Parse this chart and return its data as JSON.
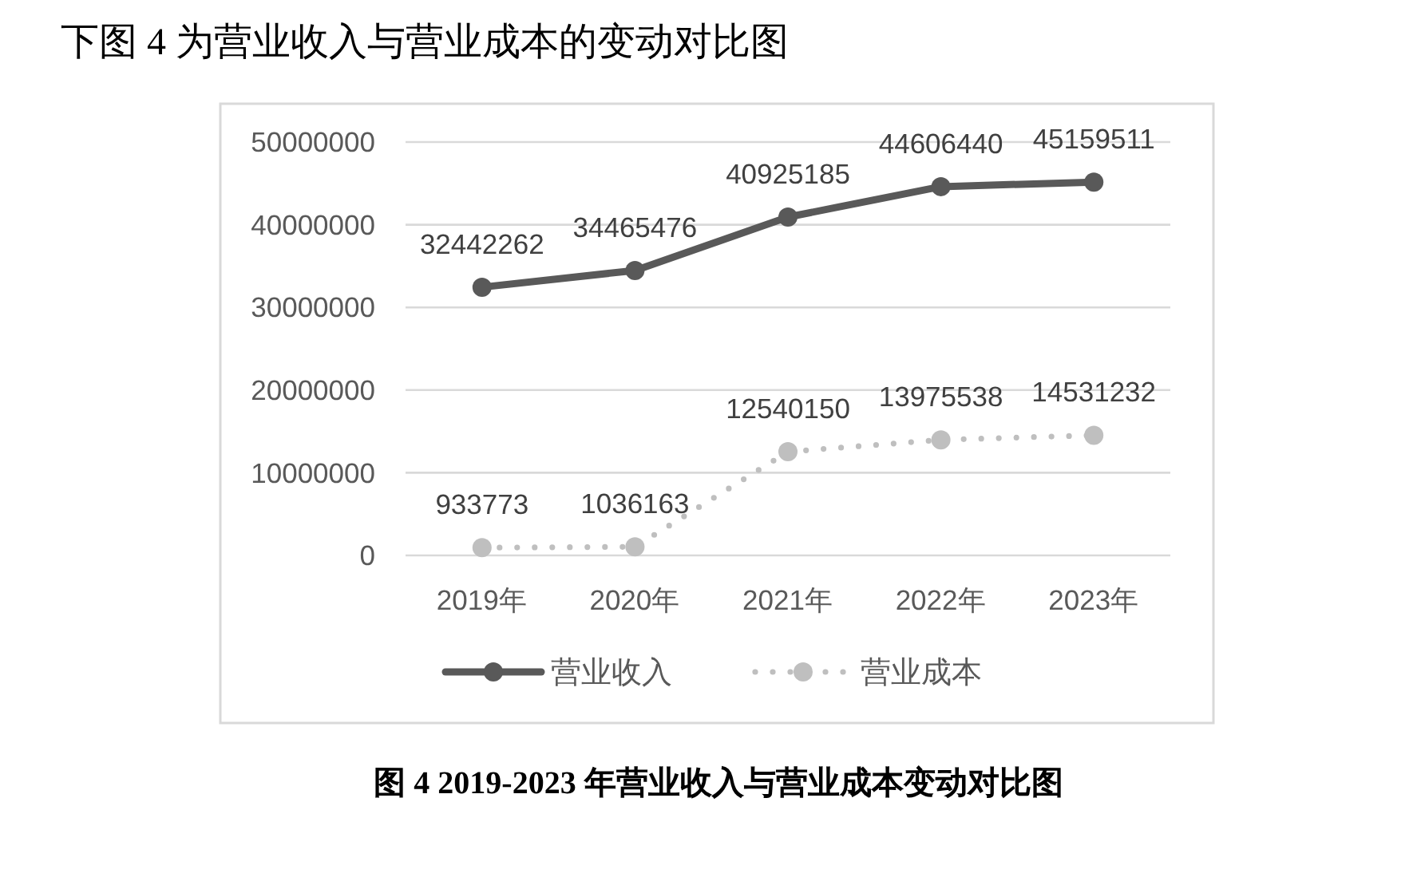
{
  "chart_data": {
    "type": "line",
    "title": "图 4 2019-2023 年营业收入与营业成本变动对比图",
    "annotations": [
      "下图 4 为营业收入与营业成本的变动对比图"
    ],
    "categories": [
      "2019年",
      "2020年",
      "2021年",
      "2022年",
      "2023年"
    ],
    "series": [
      {
        "name": "营业收入",
        "color": "#595959",
        "line_style": "solid",
        "values": [
          32442262,
          34465476,
          40925185,
          44606440,
          45159511
        ]
      },
      {
        "name": "营业成本",
        "color": "#bfbfbf",
        "line_style": "dotted",
        "values": [
          933773,
          1036163,
          12540150,
          13975538,
          14531232
        ]
      }
    ],
    "ylim": [
      0,
      50000000
    ],
    "yticks": [
      0,
      10000000,
      20000000,
      30000000,
      40000000,
      50000000
    ],
    "grid": "y",
    "legend": "bottom",
    "marker": "circle",
    "data_labels": true
  }
}
